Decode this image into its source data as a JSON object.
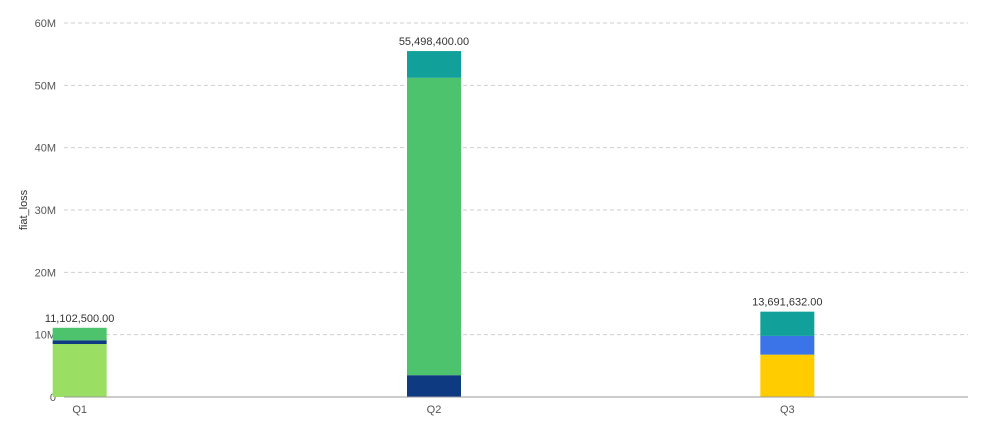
{
  "chart_data": {
    "type": "bar",
    "stacked": true,
    "title": "",
    "xlabel": "",
    "ylabel": "fiat_loss",
    "ylim": [
      0,
      60000000
    ],
    "y_ticks": [
      0,
      10000000,
      20000000,
      30000000,
      40000000,
      50000000,
      60000000
    ],
    "y_tick_labels": [
      "0",
      "10M",
      "20M",
      "30M",
      "40M",
      "50M",
      "60M"
    ],
    "grid": true,
    "legend": "none",
    "categories": [
      "Q1",
      "Q2",
      "Q3"
    ],
    "bars": [
      {
        "category": "Q1",
        "total": 11102500,
        "total_label": "11,102,500.00",
        "segments": [
          {
            "value": 8500000,
            "color": "#9ADE63"
          },
          {
            "value": 600000,
            "color": "#0E3A82"
          },
          {
            "value": 2002500,
            "color": "#4CC36C"
          }
        ]
      },
      {
        "category": "Q2",
        "total": 55498400,
        "total_label": "55,498,400.00",
        "segments": [
          {
            "value": 3500000,
            "color": "#0E3A82"
          },
          {
            "value": 47700000,
            "color": "#4CC36C"
          },
          {
            "value": 4298400,
            "color": "#12A09A"
          }
        ]
      },
      {
        "category": "Q3",
        "total": 13691632,
        "total_label": "13,691,632.00",
        "segments": [
          {
            "value": 6800000,
            "color": "#FFCC00"
          },
          {
            "value": 3000000,
            "color": "#3B73E8"
          },
          {
            "value": 3891632,
            "color": "#12A09A"
          }
        ]
      }
    ]
  }
}
